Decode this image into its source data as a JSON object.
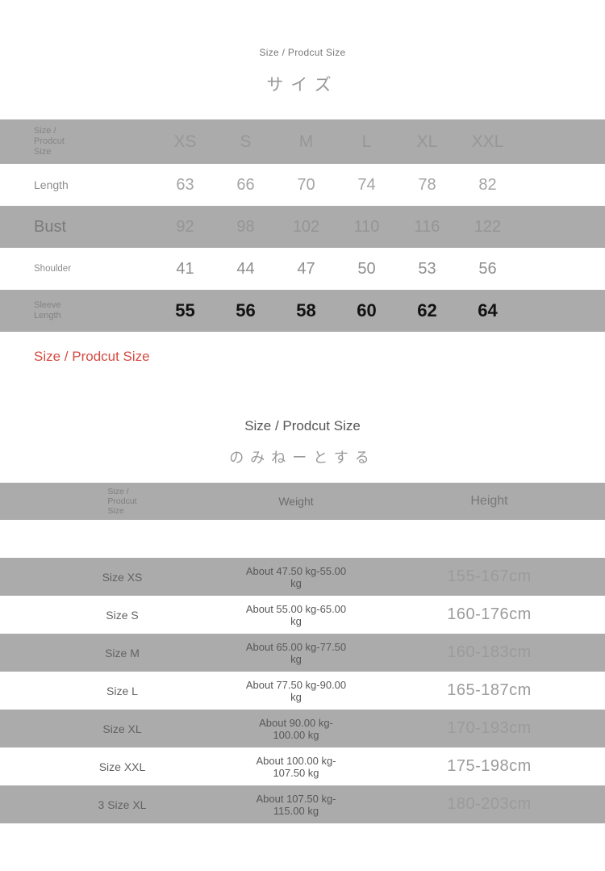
{
  "colors": {
    "band_gray": "#ababab",
    "accent_red": "#d54b42",
    "dark_value": "#121212"
  },
  "section1": {
    "subtitle": "Size / Prodcut Size",
    "title": "サイズ"
  },
  "size_table": {
    "corner_lines": [
      "Size /",
      "Prodcut",
      "Size"
    ],
    "columns": [
      "XS",
      "S",
      "M",
      "L",
      "XL",
      "XXL"
    ],
    "rows": [
      {
        "label": "Length",
        "values": [
          "63",
          "66",
          "70",
          "74",
          "78",
          "82"
        ]
      },
      {
        "label": "Bust",
        "values": [
          "92",
          "98",
          "102",
          "110",
          "116",
          "122"
        ]
      },
      {
        "label": "Shoulder",
        "values": [
          "41",
          "44",
          "47",
          "50",
          "53",
          "56"
        ]
      },
      {
        "label_lines": [
          "Sleeve",
          "Length"
        ],
        "values": [
          "55",
          "56",
          "58",
          "60",
          "62",
          "64"
        ]
      }
    ]
  },
  "red_caption": "Size / Prodcut Size",
  "section2": {
    "subtitle": "Size / Prodcut Size",
    "title": "のみねーとする"
  },
  "fit_table": {
    "corner_lines": [
      "Size /",
      "Prodcut",
      "Size"
    ],
    "weight_header": "Weight",
    "height_header": "Height",
    "rows": [
      {
        "size": "Size XS",
        "weight": "About 47.50 kg-55.00 kg",
        "height": "155-167cm"
      },
      {
        "size": "Size S",
        "weight": "About 55.00 kg-65.00 kg",
        "height": "160-176cm"
      },
      {
        "size": "Size M",
        "weight": "About 65.00 kg-77.50 kg",
        "height": "160-183cm"
      },
      {
        "size": "Size L",
        "weight": "About 77.50 kg-90.00 kg",
        "height": "165-187cm"
      },
      {
        "size": "Size XL",
        "weight": "About 90.00 kg-100.00 kg",
        "height": "170-193cm"
      },
      {
        "size": "Size XXL",
        "weight": "About 100.00 kg-107.50 kg",
        "height": "175-198cm"
      },
      {
        "size": "3 Size XL",
        "weight": "About 107.50 kg-115.00 kg",
        "height": "180-203cm"
      }
    ]
  }
}
